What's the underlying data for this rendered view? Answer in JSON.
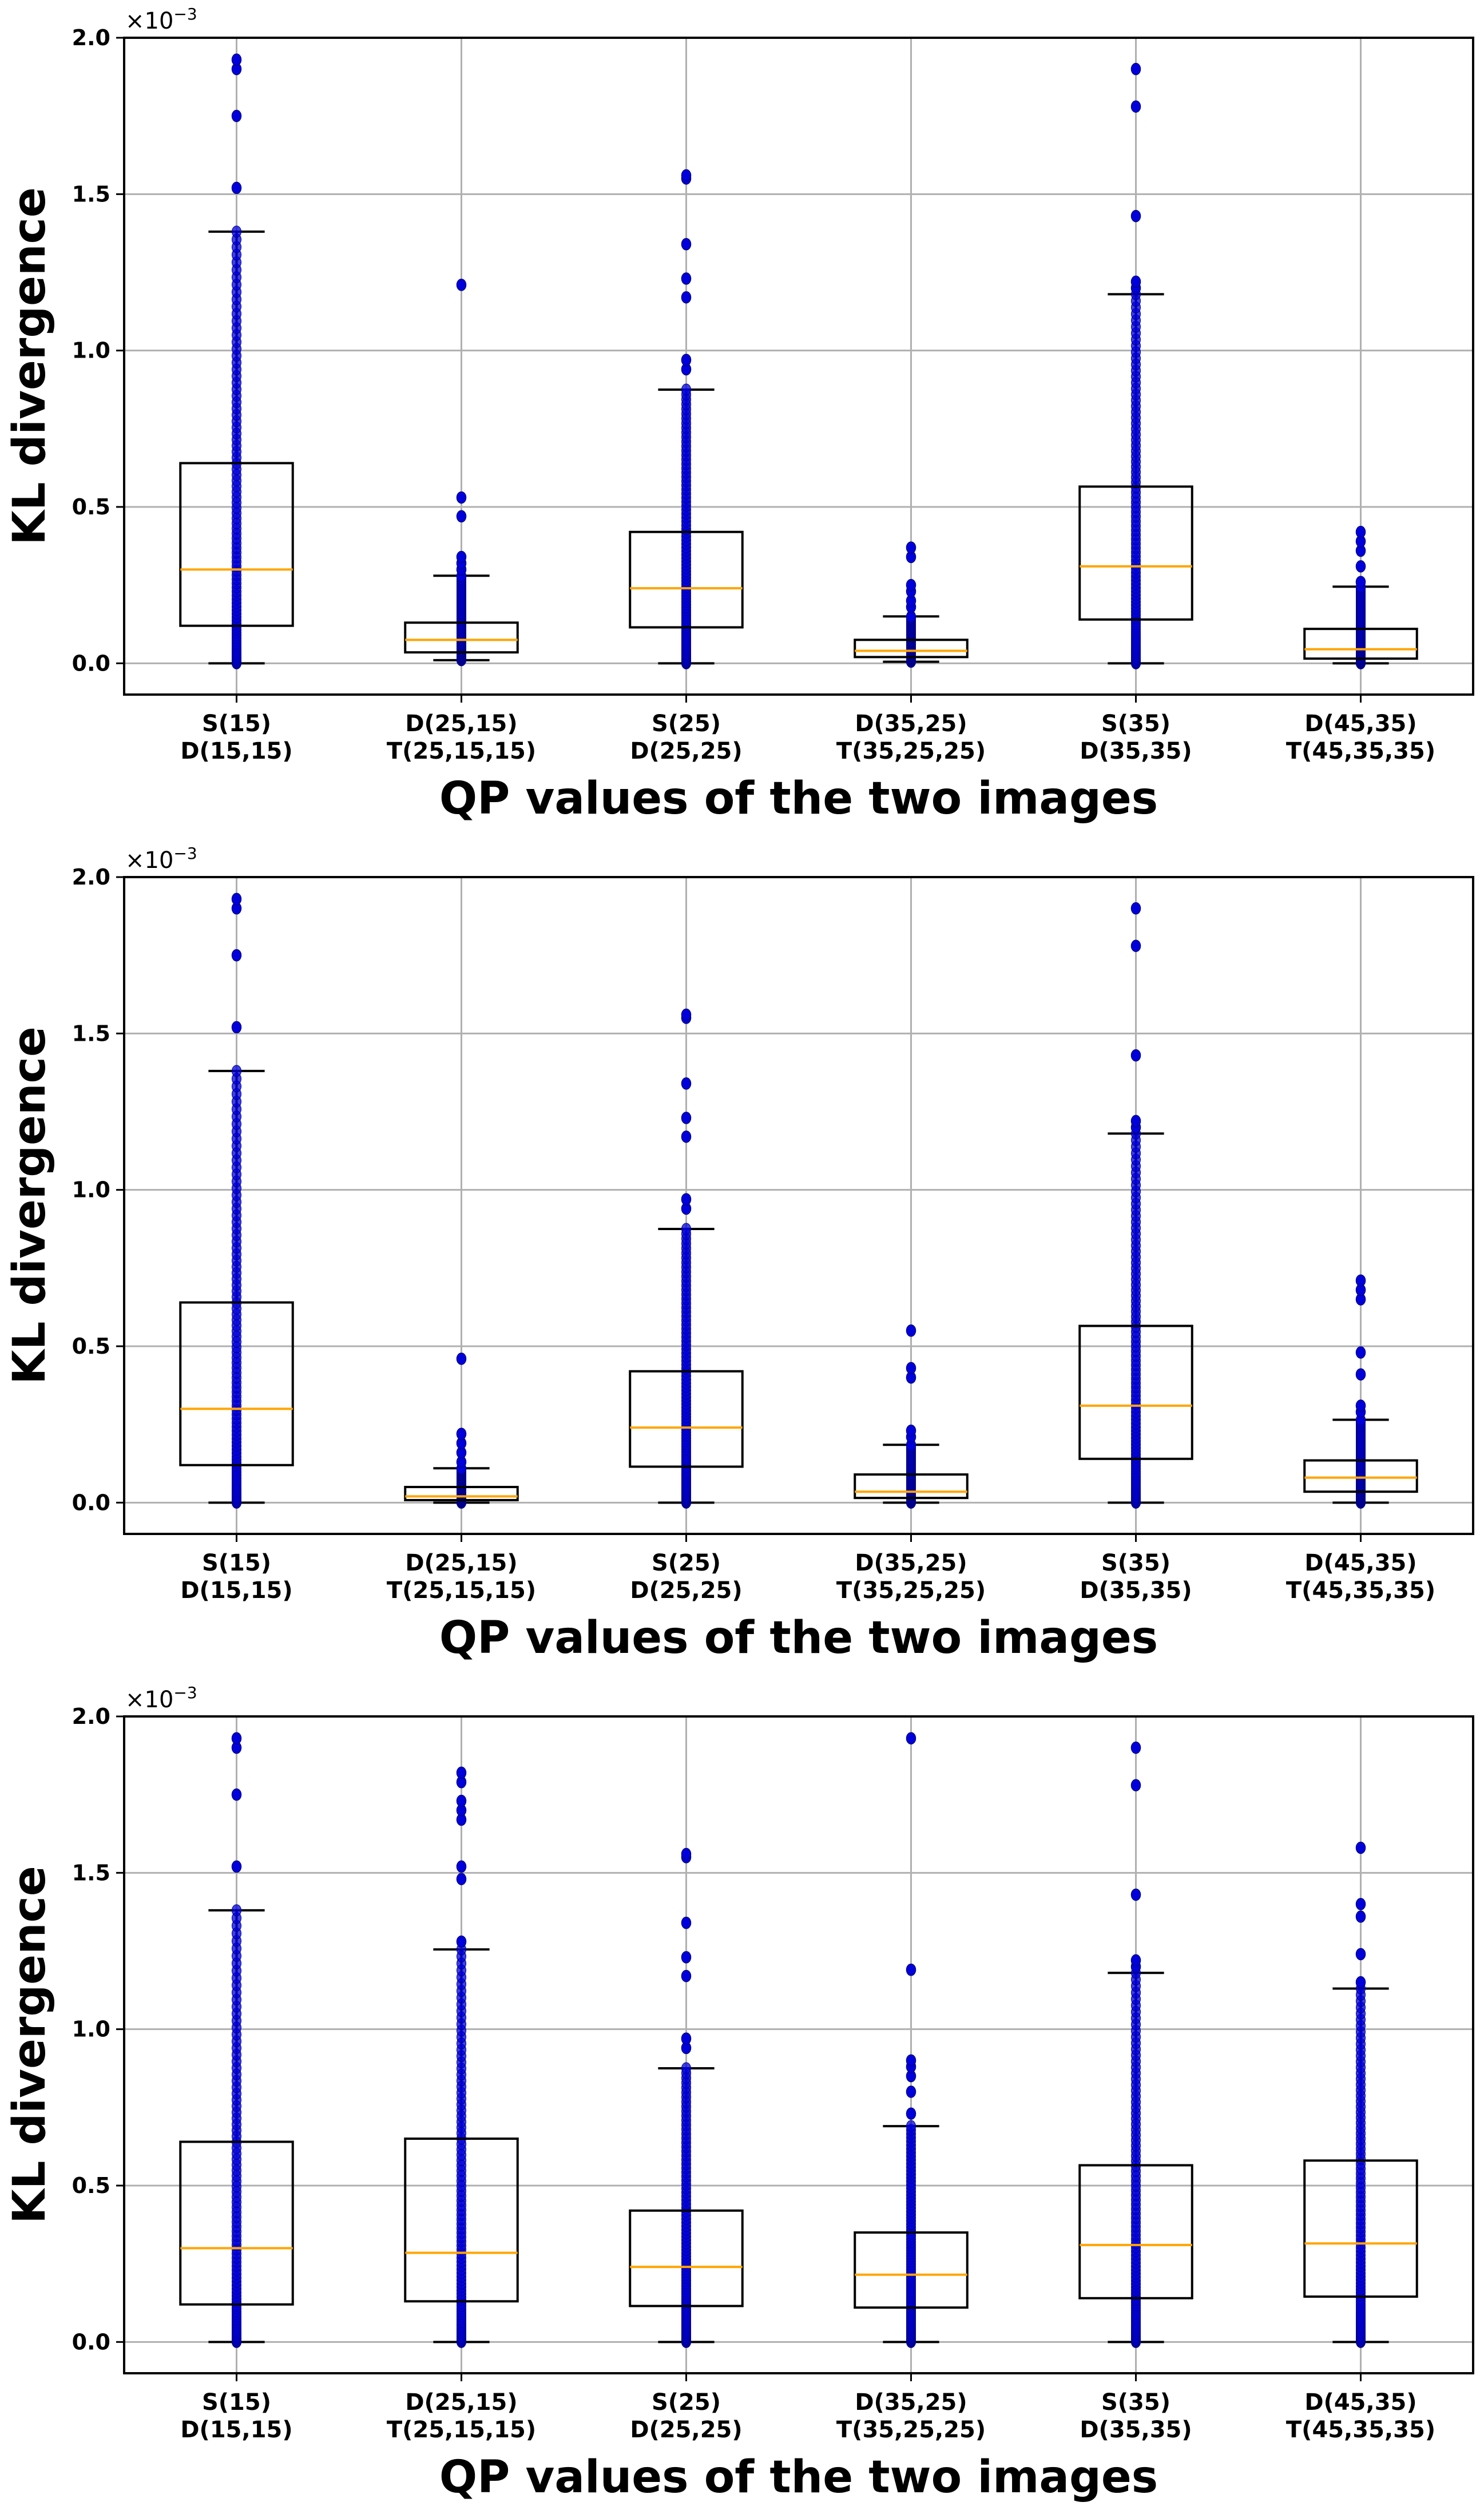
{
  "colors": {
    "median": "#ffa500",
    "points": "#0000dd",
    "grid": "#b0b0b0",
    "box": "#000000"
  },
  "chart_data": [
    {
      "type": "box",
      "title": "",
      "xlabel": "QP values of the two images",
      "ylabel": "KL divergence",
      "yscale_label": "×10",
      "yscale_exp": "−3",
      "ylim": [
        -0.1,
        2.0
      ],
      "yticks": [
        "0.0",
        "0.5",
        "1.0",
        "1.5",
        "2.0"
      ],
      "categories": [
        [
          "S(15)",
          "D(15,15)"
        ],
        [
          "D(25,15)",
          "T(25,15,15)"
        ],
        [
          "S(25)",
          "D(25,25)"
        ],
        [
          "D(35,25)",
          "T(35,25,25)"
        ],
        [
          "S(35)",
          "D(35,35)"
        ],
        [
          "D(45,35)",
          "T(45,35,35)"
        ]
      ],
      "boxes": [
        {
          "whislo": 0.0,
          "q1": 0.12,
          "med": 0.3,
          "q3": 0.64,
          "whishi": 1.38,
          "fliers": [
            1.52,
            1.75,
            1.9,
            1.93
          ]
        },
        {
          "whislo": 0.01,
          "q1": 0.035,
          "med": 0.075,
          "q3": 0.13,
          "whishi": 0.28,
          "fliers": [
            0.3,
            0.32,
            0.34,
            0.47,
            0.53,
            1.21
          ]
        },
        {
          "whislo": 0.0,
          "q1": 0.115,
          "med": 0.24,
          "q3": 0.42,
          "whishi": 0.875,
          "fliers": [
            0.94,
            0.97,
            1.17,
            1.23,
            1.34,
            1.55,
            1.56
          ]
        },
        {
          "whislo": 0.005,
          "q1": 0.02,
          "med": 0.04,
          "q3": 0.075,
          "whishi": 0.15,
          "fliers": [
            0.18,
            0.2,
            0.23,
            0.25,
            0.34,
            0.37
          ]
        },
        {
          "whislo": 0.0,
          "q1": 0.14,
          "med": 0.31,
          "q3": 0.565,
          "whishi": 1.18,
          "fliers": [
            1.2,
            1.22,
            1.43,
            1.78,
            1.9
          ]
        },
        {
          "whislo": 0.0,
          "q1": 0.015,
          "med": 0.045,
          "q3": 0.11,
          "whishi": 0.245,
          "fliers": [
            0.26,
            0.31,
            0.36,
            0.39,
            0.42
          ]
        }
      ]
    },
    {
      "type": "box",
      "title": "",
      "xlabel": "QP values of the two images",
      "ylabel": "KL divergence",
      "yscale_label": "×10",
      "yscale_exp": "−3",
      "ylim": [
        -0.1,
        2.0
      ],
      "yticks": [
        "0.0",
        "0.5",
        "1.0",
        "1.5",
        "2.0"
      ],
      "categories": [
        [
          "S(15)",
          "D(15,15)"
        ],
        [
          "D(25,15)",
          "T(25,15,15)"
        ],
        [
          "S(25)",
          "D(25,25)"
        ],
        [
          "D(35,25)",
          "T(35,25,25)"
        ],
        [
          "S(35)",
          "D(35,35)"
        ],
        [
          "D(45,35)",
          "T(45,35,35)"
        ]
      ],
      "boxes": [
        {
          "whislo": 0.0,
          "q1": 0.12,
          "med": 0.3,
          "q3": 0.64,
          "whishi": 1.38,
          "fliers": [
            1.52,
            1.75,
            1.9,
            1.93
          ]
        },
        {
          "whislo": 0.0,
          "q1": 0.008,
          "med": 0.02,
          "q3": 0.05,
          "whishi": 0.11,
          "fliers": [
            0.13,
            0.16,
            0.19,
            0.22,
            0.46
          ]
        },
        {
          "whislo": 0.0,
          "q1": 0.115,
          "med": 0.24,
          "q3": 0.42,
          "whishi": 0.875,
          "fliers": [
            0.94,
            0.97,
            1.17,
            1.23,
            1.34,
            1.55,
            1.56
          ]
        },
        {
          "whislo": 0.0,
          "q1": 0.015,
          "med": 0.035,
          "q3": 0.09,
          "whishi": 0.185,
          "fliers": [
            0.21,
            0.23,
            0.4,
            0.43,
            0.55
          ]
        },
        {
          "whislo": 0.0,
          "q1": 0.14,
          "med": 0.31,
          "q3": 0.565,
          "whishi": 1.18,
          "fliers": [
            1.2,
            1.22,
            1.43,
            1.78,
            1.9
          ]
        },
        {
          "whislo": 0.0,
          "q1": 0.035,
          "med": 0.08,
          "q3": 0.135,
          "whishi": 0.265,
          "fliers": [
            0.29,
            0.31,
            0.41,
            0.48,
            0.65,
            0.68,
            0.71
          ]
        }
      ]
    },
    {
      "type": "box",
      "title": "",
      "xlabel": "QP values of the two images",
      "ylabel": "KL divergence",
      "yscale_label": "×10",
      "yscale_exp": "−3",
      "ylim": [
        -0.1,
        2.0
      ],
      "yticks": [
        "0.0",
        "0.5",
        "1.0",
        "1.5",
        "2.0"
      ],
      "categories": [
        [
          "S(15)",
          "D(15,15)"
        ],
        [
          "D(25,15)",
          "T(25,15,15)"
        ],
        [
          "S(25)",
          "D(25,25)"
        ],
        [
          "D(35,25)",
          "T(35,25,25)"
        ],
        [
          "S(35)",
          "D(35,35)"
        ],
        [
          "D(45,35)",
          "T(45,35,35)"
        ]
      ],
      "boxes": [
        {
          "whislo": 0.0,
          "q1": 0.12,
          "med": 0.3,
          "q3": 0.64,
          "whishi": 1.38,
          "fliers": [
            1.52,
            1.75,
            1.9,
            1.93
          ]
        },
        {
          "whislo": 0.0,
          "q1": 0.13,
          "med": 0.285,
          "q3": 0.65,
          "whishi": 1.255,
          "fliers": [
            1.28,
            1.48,
            1.52,
            1.67,
            1.7,
            1.73,
            1.79,
            1.82
          ]
        },
        {
          "whislo": 0.0,
          "q1": 0.115,
          "med": 0.24,
          "q3": 0.42,
          "whishi": 0.875,
          "fliers": [
            0.94,
            0.97,
            1.17,
            1.23,
            1.34,
            1.55,
            1.56
          ]
        },
        {
          "whislo": 0.0,
          "q1": 0.11,
          "med": 0.215,
          "q3": 0.35,
          "whishi": 0.69,
          "fliers": [
            0.73,
            0.8,
            0.85,
            0.88,
            0.9,
            1.19,
            1.93
          ]
        },
        {
          "whislo": 0.0,
          "q1": 0.14,
          "med": 0.31,
          "q3": 0.565,
          "whishi": 1.18,
          "fliers": [
            1.2,
            1.22,
            1.43,
            1.78,
            1.9
          ]
        },
        {
          "whislo": 0.0,
          "q1": 0.145,
          "med": 0.315,
          "q3": 0.58,
          "whishi": 1.13,
          "fliers": [
            1.15,
            1.24,
            1.36,
            1.4,
            1.58
          ]
        }
      ]
    }
  ]
}
